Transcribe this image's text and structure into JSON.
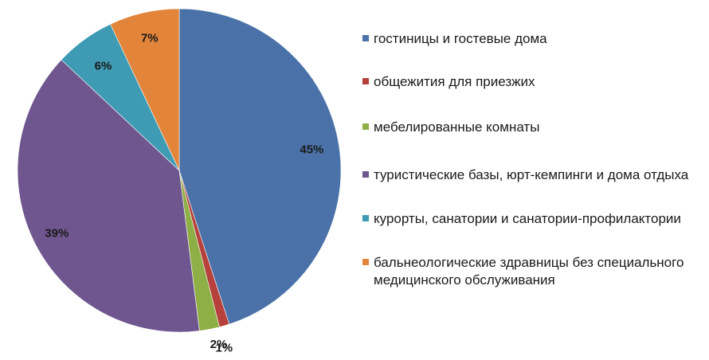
{
  "chart_data": {
    "type": "pie",
    "title": "",
    "categories": [
      "гостиницы и гостевые дома",
      "общежития для приезжих",
      "мебелированные комнаты",
      "туристические базы, юрт-кемпинги и дома отдыха",
      "курорты, санатории и санатории-профилактории",
      "бальнеологические здравницы без специального медицинского обслуживания"
    ],
    "values": [
      45,
      1,
      2,
      39,
      6,
      7
    ],
    "labels": [
      "45%",
      "1%",
      "2%",
      "39%",
      "6%",
      "7%"
    ],
    "colors": [
      "#4A72A8",
      "#B5403C",
      "#8EAF46",
      "#70568F",
      "#3E9BB3",
      "#E2843A"
    ],
    "legend_position": "right"
  }
}
